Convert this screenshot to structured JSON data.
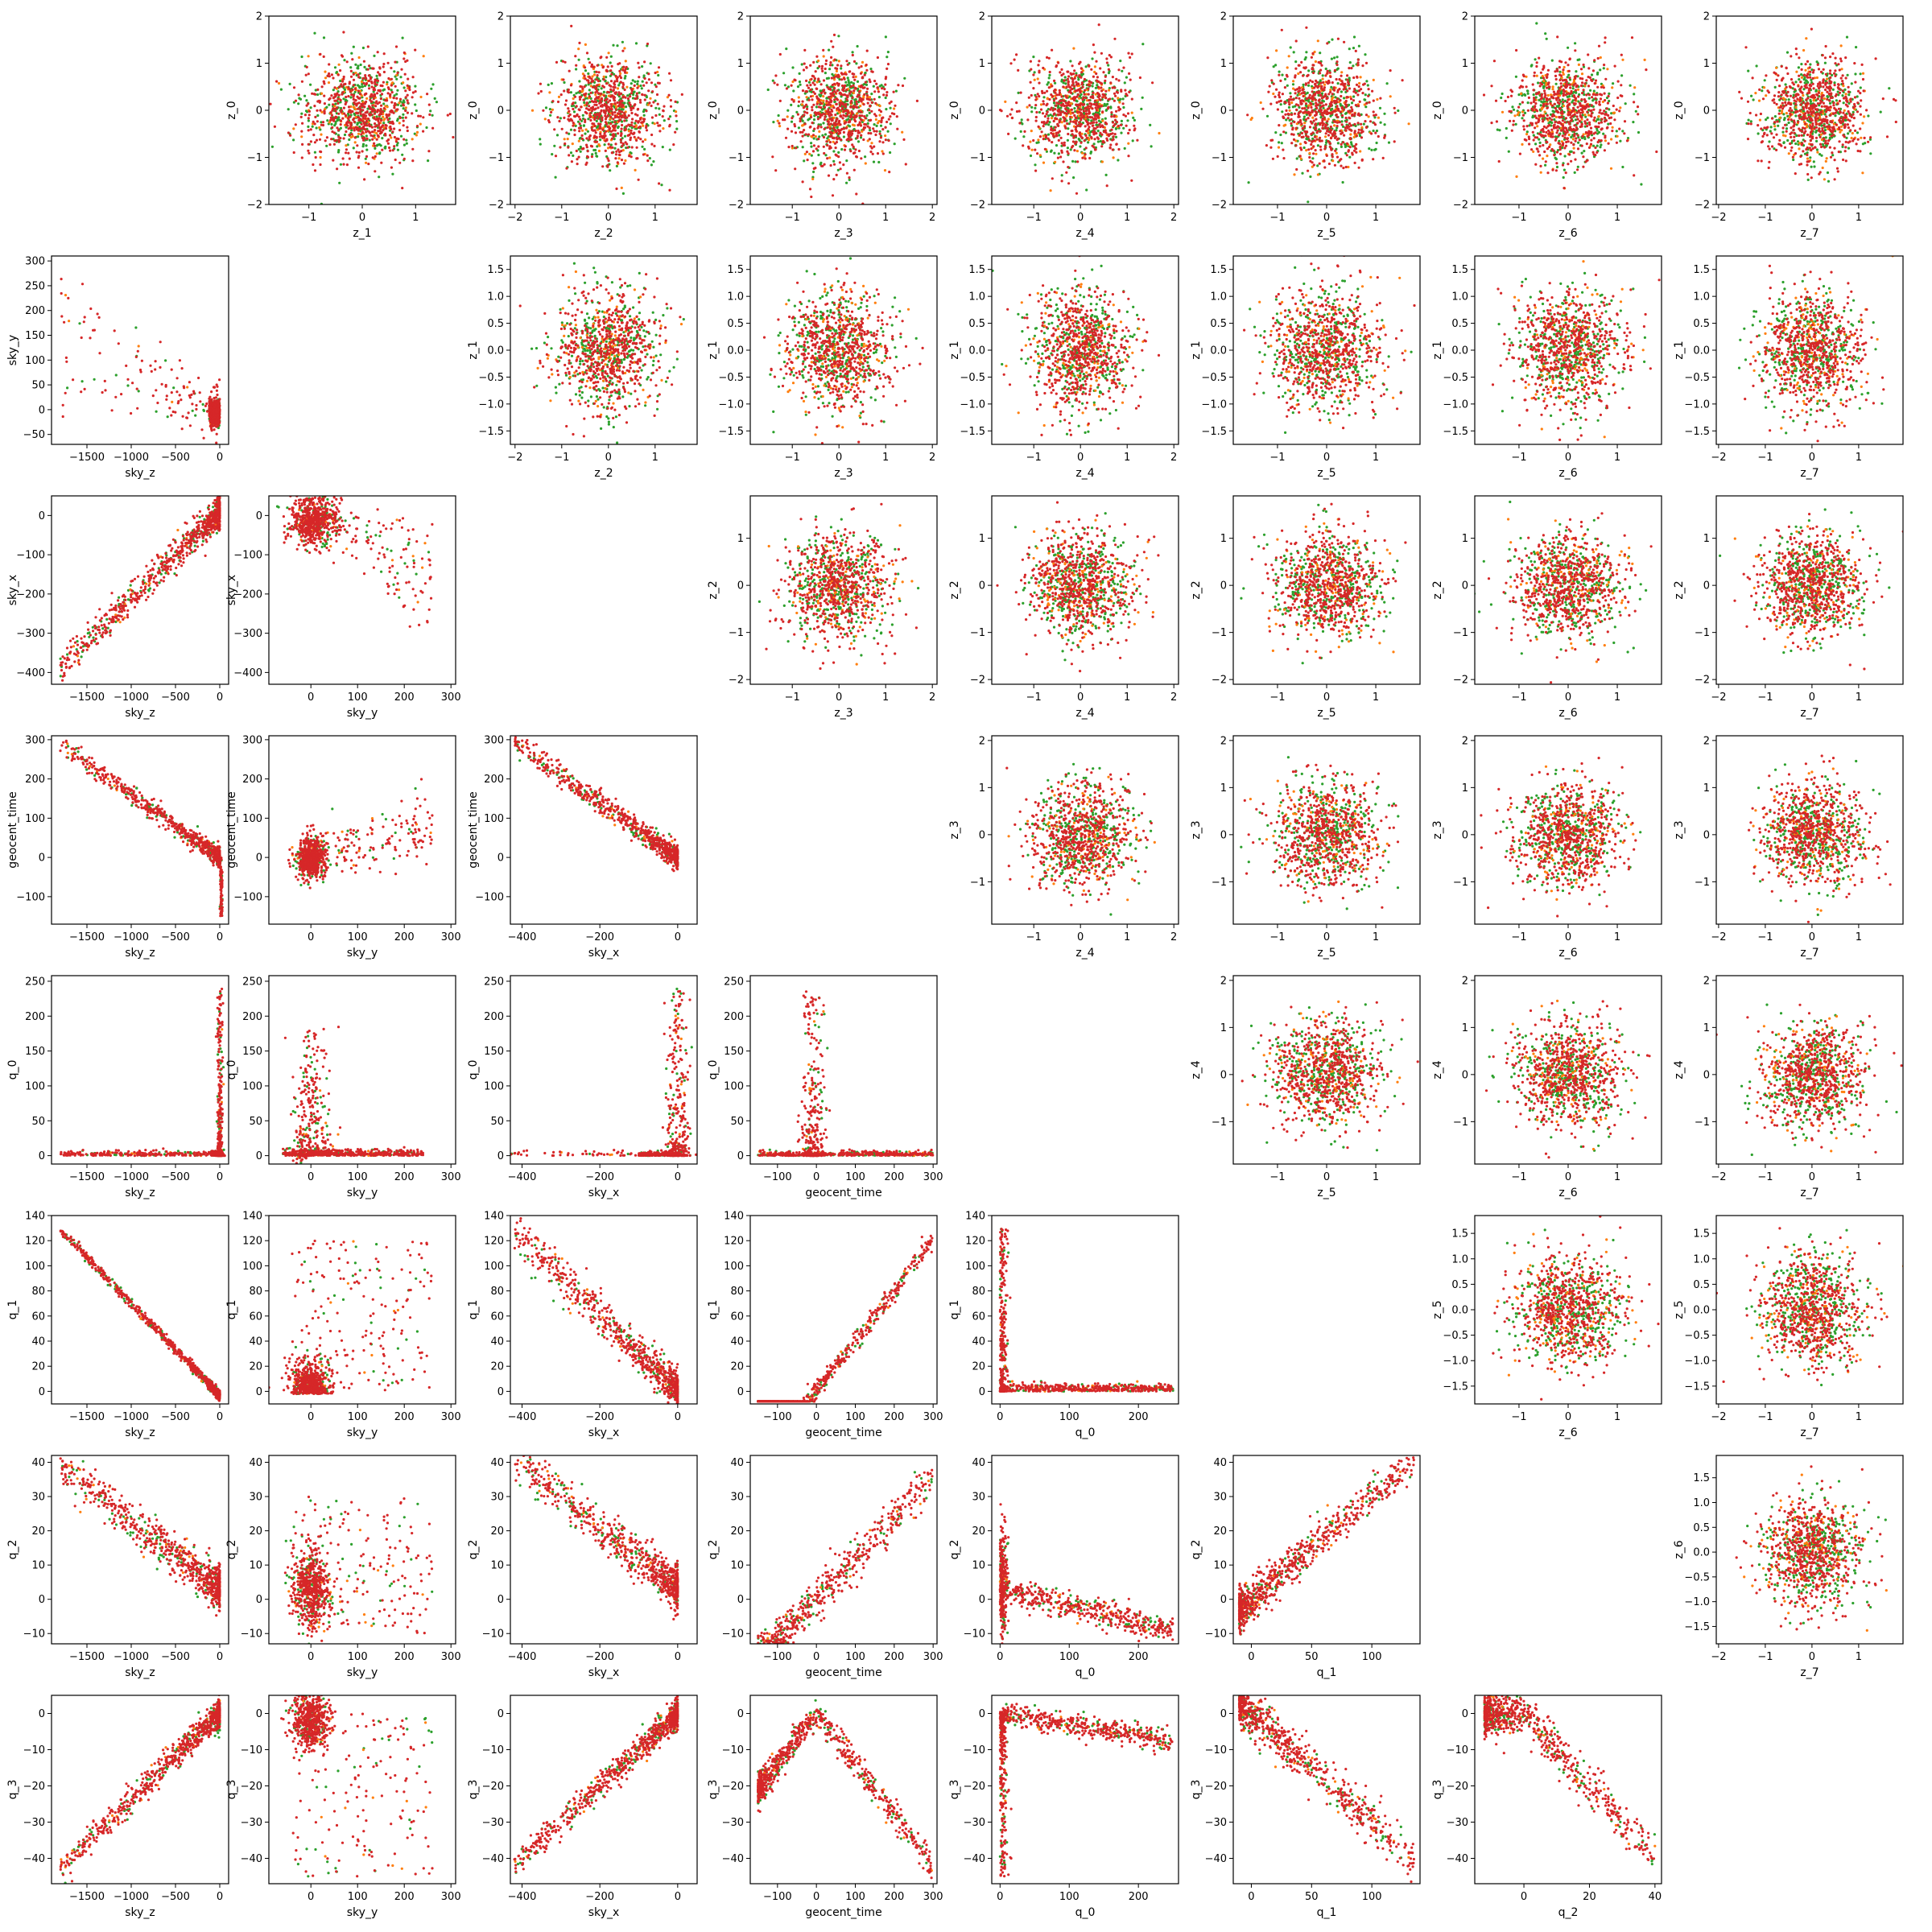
{
  "figure": {
    "description_colors": {
      "axes_edge": "#000000",
      "background": "#ffffff"
    }
  },
  "chart_data": {
    "type": "scatter",
    "layout": "corner-pair-plot",
    "rows": 9,
    "cols": 9,
    "series": [
      {
        "name": "",
        "color": "#2ca02c"
      },
      {
        "name": "",
        "color": "#ff7f0e"
      },
      {
        "name": "",
        "color": "#d62728"
      }
    ],
    "variables": {
      "z_0": {
        "range": [
          -2,
          2
        ],
        "ticks": [
          -2,
          -1,
          0,
          1,
          2
        ],
        "tick_labels": [
          "−2",
          "−1",
          "0",
          "1",
          "2"
        ]
      },
      "z_1": {
        "range": [
          -1.75,
          1.75
        ],
        "ticks": [
          -1,
          0,
          1
        ],
        "tick_labels": [
          "−1",
          "0",
          "1"
        ]
      },
      "z_1y": {
        "range": [
          -1.75,
          1.75
        ],
        "ticks": [
          -1.5,
          -1.0,
          -0.5,
          0.0,
          0.5,
          1.0,
          1.5
        ],
        "tick_labels": [
          "−1.5",
          "−1.0",
          "−0.5",
          "0.0",
          "0.5",
          "1.0",
          "1.5"
        ]
      },
      "z_2": {
        "range": [
          -2.1,
          1.9
        ],
        "ticks": [
          -2,
          -1,
          0,
          1
        ],
        "tick_labels": [
          "−2",
          "−1",
          "0",
          "1"
        ]
      },
      "z_2y": {
        "range": [
          -2.1,
          1.9
        ],
        "ticks": [
          -2,
          -1,
          0,
          1
        ],
        "tick_labels": [
          "−2",
          "−1",
          "0",
          "1"
        ]
      },
      "z_3": {
        "range": [
          -1.9,
          2.1
        ],
        "ticks": [
          -1,
          0,
          1,
          2
        ],
        "tick_labels": [
          "−1",
          "0",
          "1",
          "2"
        ]
      },
      "z_3y": {
        "range": [
          -1.9,
          2.1
        ],
        "ticks": [
          -1,
          0,
          1,
          2
        ],
        "tick_labels": [
          "−1",
          "0",
          "1",
          "2"
        ]
      },
      "z_4": {
        "range": [
          -1.9,
          2.1
        ],
        "ticks": [
          -1,
          0,
          1,
          2
        ],
        "tick_labels": [
          "−1",
          "0",
          "1",
          "2"
        ]
      },
      "z_4y": {
        "range": [
          -1.9,
          2.1
        ],
        "ticks": [
          -1,
          0,
          1,
          2
        ],
        "tick_labels": [
          "−1",
          "0",
          "1",
          "2"
        ]
      },
      "z_5": {
        "range": [
          -1.9,
          1.9
        ],
        "ticks": [
          -1,
          0,
          1
        ],
        "tick_labels": [
          "−1",
          "0",
          "1"
        ]
      },
      "z_5y": {
        "range": [
          -1.85,
          1.85
        ],
        "ticks": [
          -1.5,
          -1.0,
          -0.5,
          0.0,
          0.5,
          1.0,
          1.5
        ],
        "tick_labels": [
          "−1.5",
          "−1.0",
          "−0.5",
          "0.0",
          "0.5",
          "1.0",
          "1.5"
        ]
      },
      "z_6": {
        "range": [
          -1.9,
          1.9
        ],
        "ticks": [
          -1,
          0,
          1
        ],
        "tick_labels": [
          "−1",
          "0",
          "1"
        ]
      },
      "z_6y": {
        "range": [
          -1.85,
          1.95
        ],
        "ticks": [
          -1.5,
          -1.0,
          -0.5,
          0.0,
          0.5,
          1.0,
          1.5
        ],
        "tick_labels": [
          "−1.5",
          "−1.0",
          "−0.5",
          "0.0",
          "0.5",
          "1.0",
          "1.5"
        ]
      },
      "z_7": {
        "range": [
          -2.05,
          1.95
        ],
        "ticks": [
          -2,
          -1,
          0,
          1,
          2
        ],
        "tick_labels": [
          "−2",
          "−1",
          "0",
          "1",
          "2"
        ]
      },
      "sky_z": {
        "range": [
          -1900,
          100
        ],
        "ticks": [
          -1500,
          -1000,
          -500,
          0
        ],
        "tick_labels": [
          "−1500",
          "−1000",
          "−500",
          "0"
        ]
      },
      "sky_y": {
        "range": [
          -90,
          310
        ],
        "ticks": [
          0,
          100,
          200,
          300
        ],
        "tick_labels": [
          "0",
          "100",
          "200",
          "300"
        ]
      },
      "sky_yy": {
        "range": [
          -70,
          310
        ],
        "ticks": [
          -50,
          0,
          50,
          100,
          150,
          200,
          250,
          300
        ],
        "tick_labels": [
          "−50",
          "0",
          "50",
          "100",
          "150",
          "200",
          "250",
          "300"
        ]
      },
      "sky_x": {
        "range": [
          -430,
          50
        ],
        "ticks": [
          -400,
          -200,
          0
        ],
        "tick_labels": [
          "−400",
          "−200",
          "0"
        ]
      },
      "sky_xy": {
        "range": [
          -430,
          50
        ],
        "ticks": [
          -400,
          -300,
          -200,
          -100,
          0
        ],
        "tick_labels": [
          "−400",
          "−300",
          "−200",
          "−100",
          "0"
        ]
      },
      "geocent_time": {
        "range": [
          -170,
          310
        ],
        "ticks": [
          -100,
          0,
          100,
          200,
          300
        ],
        "tick_labels": [
          "−100",
          "0",
          "100",
          "200",
          "300"
        ]
      },
      "geocent_timey": {
        "range": [
          -170,
          310
        ],
        "ticks": [
          -100,
          0,
          100,
          200,
          300
        ],
        "tick_labels": [
          "−100",
          "0",
          "100",
          "200",
          "300"
        ]
      },
      "q_0": {
        "range": [
          -12,
          258
        ],
        "ticks": [
          0,
          100,
          200
        ],
        "tick_labels": [
          "0",
          "100",
          "200"
        ]
      },
      "q_0y": {
        "range": [
          -12,
          258
        ],
        "ticks": [
          0,
          50,
          100,
          150,
          200,
          250
        ],
        "tick_labels": [
          "0",
          "50",
          "100",
          "150",
          "200",
          "250"
        ]
      },
      "q_1": {
        "range": [
          -15,
          140
        ],
        "ticks": [
          0,
          50,
          100
        ],
        "tick_labels": [
          "0",
          "50",
          "100"
        ]
      },
      "q_1y": {
        "range": [
          -10,
          140
        ],
        "ticks": [
          0,
          20,
          40,
          60,
          80,
          100,
          120,
          140
        ],
        "tick_labels": [
          "0",
          "20",
          "40",
          "60",
          "80",
          "100",
          "120",
          "140"
        ]
      },
      "q_2": {
        "range": [
          -15,
          42
        ],
        "ticks": [
          0,
          20,
          40
        ],
        "tick_labels": [
          "0",
          "20",
          "40"
        ]
      },
      "q_2y": {
        "range": [
          -13,
          42
        ],
        "ticks": [
          -10,
          0,
          10,
          20,
          30,
          40
        ],
        "tick_labels": [
          "−10",
          "0",
          "10",
          "20",
          "30",
          "40"
        ]
      },
      "q_3y": {
        "range": [
          -47,
          5
        ],
        "ticks": [
          -40,
          -30,
          -20,
          -10,
          0
        ],
        "tick_labels": [
          "−40",
          "−30",
          "−20",
          "−10",
          "0"
        ]
      }
    },
    "panels": [
      {
        "row": 0,
        "col": 1,
        "x": "z_1",
        "y": "z_0",
        "xlabel": "z_1",
        "ylabel": "z_0",
        "kind": "gauss"
      },
      {
        "row": 0,
        "col": 2,
        "x": "z_2",
        "y": "z_0",
        "xlabel": "z_2",
        "ylabel": "z_0",
        "kind": "gauss"
      },
      {
        "row": 0,
        "col": 3,
        "x": "z_3",
        "y": "z_0",
        "xlabel": "z_3",
        "ylabel": "z_0",
        "kind": "gauss"
      },
      {
        "row": 0,
        "col": 4,
        "x": "z_4",
        "y": "z_0",
        "xlabel": "z_4",
        "ylabel": "z_0",
        "kind": "gauss"
      },
      {
        "row": 0,
        "col": 5,
        "x": "z_5",
        "y": "z_0",
        "xlabel": "z_5",
        "ylabel": "z_0",
        "kind": "gauss"
      },
      {
        "row": 0,
        "col": 6,
        "x": "z_6",
        "y": "z_0",
        "xlabel": "z_6",
        "ylabel": "z_0",
        "kind": "gauss"
      },
      {
        "row": 0,
        "col": 7,
        "x": "z_7",
        "y": "z_0",
        "xlabel": "z_7",
        "ylabel": "z_0",
        "kind": "gauss"
      },
      {
        "row": 1,
        "col": 0,
        "x": "sky_z",
        "y": "sky_yy",
        "xlabel": "sky_z",
        "ylabel": "sky_y",
        "kind": "skyz_skyy"
      },
      {
        "row": 1,
        "col": 2,
        "x": "z_2",
        "y": "z_1y",
        "xlabel": "z_2",
        "ylabel": "z_1",
        "kind": "gauss"
      },
      {
        "row": 1,
        "col": 3,
        "x": "z_3",
        "y": "z_1y",
        "xlabel": "z_3",
        "ylabel": "z_1",
        "kind": "gauss"
      },
      {
        "row": 1,
        "col": 4,
        "x": "z_4",
        "y": "z_1y",
        "xlabel": "z_4",
        "ylabel": "z_1",
        "kind": "gauss"
      },
      {
        "row": 1,
        "col": 5,
        "x": "z_5",
        "y": "z_1y",
        "xlabel": "z_5",
        "ylabel": "z_1",
        "kind": "gauss"
      },
      {
        "row": 1,
        "col": 6,
        "x": "z_6",
        "y": "z_1y",
        "xlabel": "z_6",
        "ylabel": "z_1",
        "kind": "gauss"
      },
      {
        "row": 1,
        "col": 7,
        "x": "z_7",
        "y": "z_1y",
        "xlabel": "z_7",
        "ylabel": "z_1",
        "kind": "gauss"
      },
      {
        "row": 2,
        "col": 0,
        "x": "sky_z",
        "y": "sky_xy",
        "xlabel": "sky_z",
        "ylabel": "sky_x",
        "kind": "skyz_skyx"
      },
      {
        "row": 2,
        "col": 1,
        "x": "sky_y",
        "y": "sky_xy",
        "xlabel": "sky_y",
        "ylabel": "sky_x",
        "kind": "skyy_skyx"
      },
      {
        "row": 2,
        "col": 3,
        "x": "z_3",
        "y": "z_2y",
        "xlabel": "z_3",
        "ylabel": "z_2",
        "kind": "gauss"
      },
      {
        "row": 2,
        "col": 4,
        "x": "z_4",
        "y": "z_2y",
        "xlabel": "z_4",
        "ylabel": "z_2",
        "kind": "gauss"
      },
      {
        "row": 2,
        "col": 5,
        "x": "z_5",
        "y": "z_2y",
        "xlabel": "z_5",
        "ylabel": "z_2",
        "kind": "gauss"
      },
      {
        "row": 2,
        "col": 6,
        "x": "z_6",
        "y": "z_2y",
        "xlabel": "z_6",
        "ylabel": "z_2",
        "kind": "gauss"
      },
      {
        "row": 2,
        "col": 7,
        "x": "z_7",
        "y": "z_2y",
        "xlabel": "z_7",
        "ylabel": "z_2",
        "kind": "gauss"
      },
      {
        "row": 3,
        "col": 0,
        "x": "sky_z",
        "y": "geocent_timey",
        "xlabel": "sky_z",
        "ylabel": "geocent_time",
        "kind": "skyz_gt"
      },
      {
        "row": 3,
        "col": 1,
        "x": "sky_y",
        "y": "geocent_timey",
        "xlabel": "sky_y",
        "ylabel": "geocent_time",
        "kind": "skyy_gt"
      },
      {
        "row": 3,
        "col": 2,
        "x": "sky_x",
        "y": "geocent_timey",
        "xlabel": "sky_x",
        "ylabel": "geocent_time",
        "kind": "skyx_gt"
      },
      {
        "row": 3,
        "col": 4,
        "x": "z_4",
        "y": "z_3y",
        "xlabel": "z_4",
        "ylabel": "z_3",
        "kind": "gauss"
      },
      {
        "row": 3,
        "col": 5,
        "x": "z_5",
        "y": "z_3y",
        "xlabel": "z_5",
        "ylabel": "z_3",
        "kind": "gauss"
      },
      {
        "row": 3,
        "col": 6,
        "x": "z_6",
        "y": "z_3y",
        "xlabel": "z_6",
        "ylabel": "z_3",
        "kind": "gauss"
      },
      {
        "row": 3,
        "col": 7,
        "x": "z_7",
        "y": "z_3y",
        "xlabel": "z_7",
        "ylabel": "z_3",
        "kind": "gauss"
      },
      {
        "row": 4,
        "col": 0,
        "x": "sky_z",
        "y": "q_0y",
        "xlabel": "sky_z",
        "ylabel": "q_0",
        "kind": "lshape"
      },
      {
        "row": 4,
        "col": 1,
        "x": "sky_y",
        "y": "q_0y",
        "xlabel": "sky_y",
        "ylabel": "q_0",
        "kind": "skyy_q0"
      },
      {
        "row": 4,
        "col": 2,
        "x": "sky_x",
        "y": "q_0y",
        "xlabel": "sky_x",
        "ylabel": "q_0",
        "kind": "lshape"
      },
      {
        "row": 4,
        "col": 3,
        "x": "geocent_time",
        "y": "q_0y",
        "xlabel": "geocent_time",
        "ylabel": "q_0",
        "kind": "gt_q0"
      },
      {
        "row": 4,
        "col": 5,
        "x": "z_5",
        "y": "z_4y",
        "xlabel": "z_5",
        "ylabel": "z_4",
        "kind": "gauss"
      },
      {
        "row": 4,
        "col": 6,
        "x": "z_6",
        "y": "z_4y",
        "xlabel": "z_6",
        "ylabel": "z_4",
        "kind": "gauss"
      },
      {
        "row": 4,
        "col": 7,
        "x": "z_7",
        "y": "z_4y",
        "xlabel": "z_7",
        "ylabel": "z_4",
        "kind": "gauss"
      },
      {
        "row": 5,
        "col": 0,
        "x": "sky_z",
        "y": "q_1y",
        "xlabel": "sky_z",
        "ylabel": "q_1",
        "kind": "skyz_q1"
      },
      {
        "row": 5,
        "col": 1,
        "x": "sky_y",
        "y": "q_1y",
        "xlabel": "sky_y",
        "ylabel": "q_1",
        "kind": "skyy_q1"
      },
      {
        "row": 5,
        "col": 2,
        "x": "sky_x",
        "y": "q_1y",
        "xlabel": "sky_x",
        "ylabel": "q_1",
        "kind": "skyx_q1"
      },
      {
        "row": 5,
        "col": 3,
        "x": "geocent_time",
        "y": "q_1y",
        "xlabel": "geocent_time",
        "ylabel": "q_1",
        "kind": "gt_q1"
      },
      {
        "row": 5,
        "col": 4,
        "x": "q_0",
        "y": "q_1y",
        "xlabel": "q_0",
        "ylabel": "q_1",
        "kind": "q0_q1"
      },
      {
        "row": 5,
        "col": 6,
        "x": "z_6",
        "y": "z_5y",
        "xlabel": "z_6",
        "ylabel": "z_5",
        "kind": "gauss"
      },
      {
        "row": 5,
        "col": 7,
        "x": "z_7",
        "y": "z_5y",
        "xlabel": "z_7",
        "ylabel": "z_5",
        "kind": "gauss"
      },
      {
        "row": 6,
        "col": 0,
        "x": "sky_z",
        "y": "q_2y",
        "xlabel": "sky_z",
        "ylabel": "q_2",
        "kind": "skyz_q2"
      },
      {
        "row": 6,
        "col": 1,
        "x": "sky_y",
        "y": "q_2y",
        "xlabel": "sky_y",
        "ylabel": "q_2",
        "kind": "skyy_q2"
      },
      {
        "row": 6,
        "col": 2,
        "x": "sky_x",
        "y": "q_2y",
        "xlabel": "sky_x",
        "ylabel": "q_2",
        "kind": "skyx_q2"
      },
      {
        "row": 6,
        "col": 3,
        "x": "geocent_time",
        "y": "q_2y",
        "xlabel": "geocent_time",
        "ylabel": "q_2",
        "kind": "gt_q2"
      },
      {
        "row": 6,
        "col": 4,
        "x": "q_0",
        "y": "q_2y",
        "xlabel": "q_0",
        "ylabel": "q_2",
        "kind": "q0_q2"
      },
      {
        "row": 6,
        "col": 5,
        "x": "q_1",
        "y": "q_2y",
        "xlabel": "q_1",
        "ylabel": "q_2",
        "kind": "q1_q2"
      },
      {
        "row": 6,
        "col": 7,
        "x": "z_7",
        "y": "z_6y",
        "xlabel": "z_7",
        "ylabel": "z_6",
        "kind": "gauss"
      },
      {
        "row": 7,
        "col": 0,
        "x": "sky_z",
        "y": "q_3y",
        "xlabel": "sky_z",
        "ylabel": "q_3",
        "kind": "skyz_q3"
      },
      {
        "row": 7,
        "col": 1,
        "x": "sky_y",
        "y": "q_3y",
        "xlabel": "sky_y",
        "ylabel": "q_3",
        "kind": "skyy_q3"
      },
      {
        "row": 7,
        "col": 2,
        "x": "sky_x",
        "y": "q_3y",
        "xlabel": "sky_x",
        "ylabel": "q_3",
        "kind": "skyx_q3"
      },
      {
        "row": 7,
        "col": 3,
        "x": "geocent_time",
        "y": "q_3y",
        "xlabel": "geocent_time",
        "ylabel": "q_3",
        "kind": "gt_q3"
      },
      {
        "row": 7,
        "col": 4,
        "x": "q_0",
        "y": "q_3y",
        "xlabel": "q_0",
        "ylabel": "q_3",
        "kind": "q0_q3"
      },
      {
        "row": 7,
        "col": 5,
        "x": "q_1",
        "y": "q_3y",
        "xlabel": "q_1",
        "ylabel": "q_3",
        "kind": "q1_q3"
      },
      {
        "row": 7,
        "col": 6,
        "x": "q_2",
        "y": "q_3y",
        "xlabel": "q_2",
        "ylabel": "q_3",
        "kind": "q2_q3"
      }
    ]
  }
}
